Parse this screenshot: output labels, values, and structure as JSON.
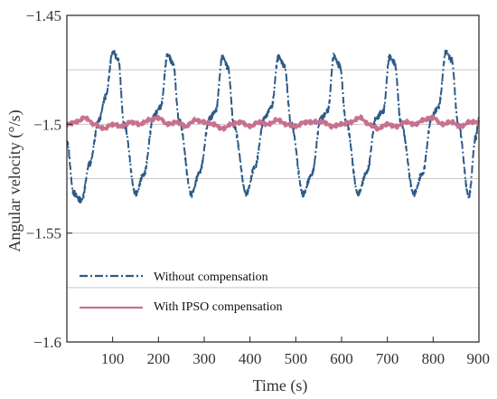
{
  "chart_data": {
    "type": "line",
    "xlabel": "Time (s)",
    "ylabel": "Angular velocity (°/s)",
    "xlim": [
      0,
      900
    ],
    "ylim": [
      -1.6,
      -1.45
    ],
    "xticks": [
      100,
      200,
      300,
      400,
      500,
      600,
      700,
      800,
      900
    ],
    "xtick_labels": [
      "100",
      "200",
      "300",
      "400",
      "500",
      "600",
      "700",
      "800",
      "900"
    ],
    "yticks": [
      -1.45,
      -1.5,
      -1.55,
      -1.6
    ],
    "ytick_labels": [
      "−1.45",
      "−1.5",
      "−1.55",
      "−1.6"
    ],
    "gridlines_y": [
      -1.475,
      -1.5,
      -1.525,
      -1.55,
      -1.575
    ],
    "legend_position": "lower-left",
    "series": [
      {
        "name": "Without compensation",
        "color": "#2c5a88",
        "dash": "dash-dot",
        "x": [
          0,
          15,
          32,
          50,
          70,
          85,
          100,
          112,
          125,
          150,
          168,
          190,
          205,
          220,
          232,
          245,
          272,
          290,
          312,
          325,
          340,
          352,
          365,
          392,
          410,
          432,
          447,
          462,
          475,
          490,
          516,
          535,
          555,
          570,
          583,
          596,
          610,
          636,
          655,
          676,
          691,
          705,
          716,
          730,
          758,
          776,
          798,
          812,
          828,
          840,
          855,
          878,
          893,
          900
        ],
        "y": [
          -1.508,
          -1.532,
          -1.535,
          -1.518,
          -1.498,
          -1.487,
          -1.467,
          -1.47,
          -1.5,
          -1.532,
          -1.523,
          -1.496,
          -1.492,
          -1.468,
          -1.472,
          -1.498,
          -1.532,
          -1.522,
          -1.497,
          -1.494,
          -1.469,
          -1.474,
          -1.501,
          -1.532,
          -1.52,
          -1.497,
          -1.492,
          -1.469,
          -1.473,
          -1.5,
          -1.532,
          -1.523,
          -1.497,
          -1.494,
          -1.469,
          -1.473,
          -1.499,
          -1.532,
          -1.522,
          -1.497,
          -1.494,
          -1.469,
          -1.472,
          -1.5,
          -1.532,
          -1.523,
          -1.496,
          -1.492,
          -1.467,
          -1.47,
          -1.5,
          -1.533,
          -1.506,
          -1.497
        ]
      },
      {
        "name": "With IPSO compensation",
        "color": "#c7718f",
        "dash": "solid",
        "x": [
          0,
          20,
          40,
          60,
          80,
          100,
          120,
          140,
          160,
          180,
          200,
          220,
          240,
          260,
          280,
          300,
          320,
          340,
          360,
          380,
          400,
          420,
          440,
          460,
          480,
          500,
          520,
          540,
          560,
          580,
          600,
          620,
          640,
          660,
          680,
          700,
          720,
          740,
          760,
          780,
          800,
          820,
          840,
          860,
          880,
          900
        ],
        "y": [
          -1.5,
          -1.499,
          -1.497,
          -1.5,
          -1.502,
          -1.5,
          -1.501,
          -1.499,
          -1.5,
          -1.498,
          -1.497,
          -1.5,
          -1.499,
          -1.501,
          -1.498,
          -1.499,
          -1.5,
          -1.502,
          -1.5,
          -1.499,
          -1.501,
          -1.499,
          -1.5,
          -1.498,
          -1.5,
          -1.501,
          -1.499,
          -1.499,
          -1.499,
          -1.501,
          -1.5,
          -1.499,
          -1.497,
          -1.5,
          -1.502,
          -1.5,
          -1.501,
          -1.499,
          -1.5,
          -1.498,
          -1.497,
          -1.5,
          -1.499,
          -1.501,
          -1.499,
          -1.499
        ]
      }
    ]
  }
}
